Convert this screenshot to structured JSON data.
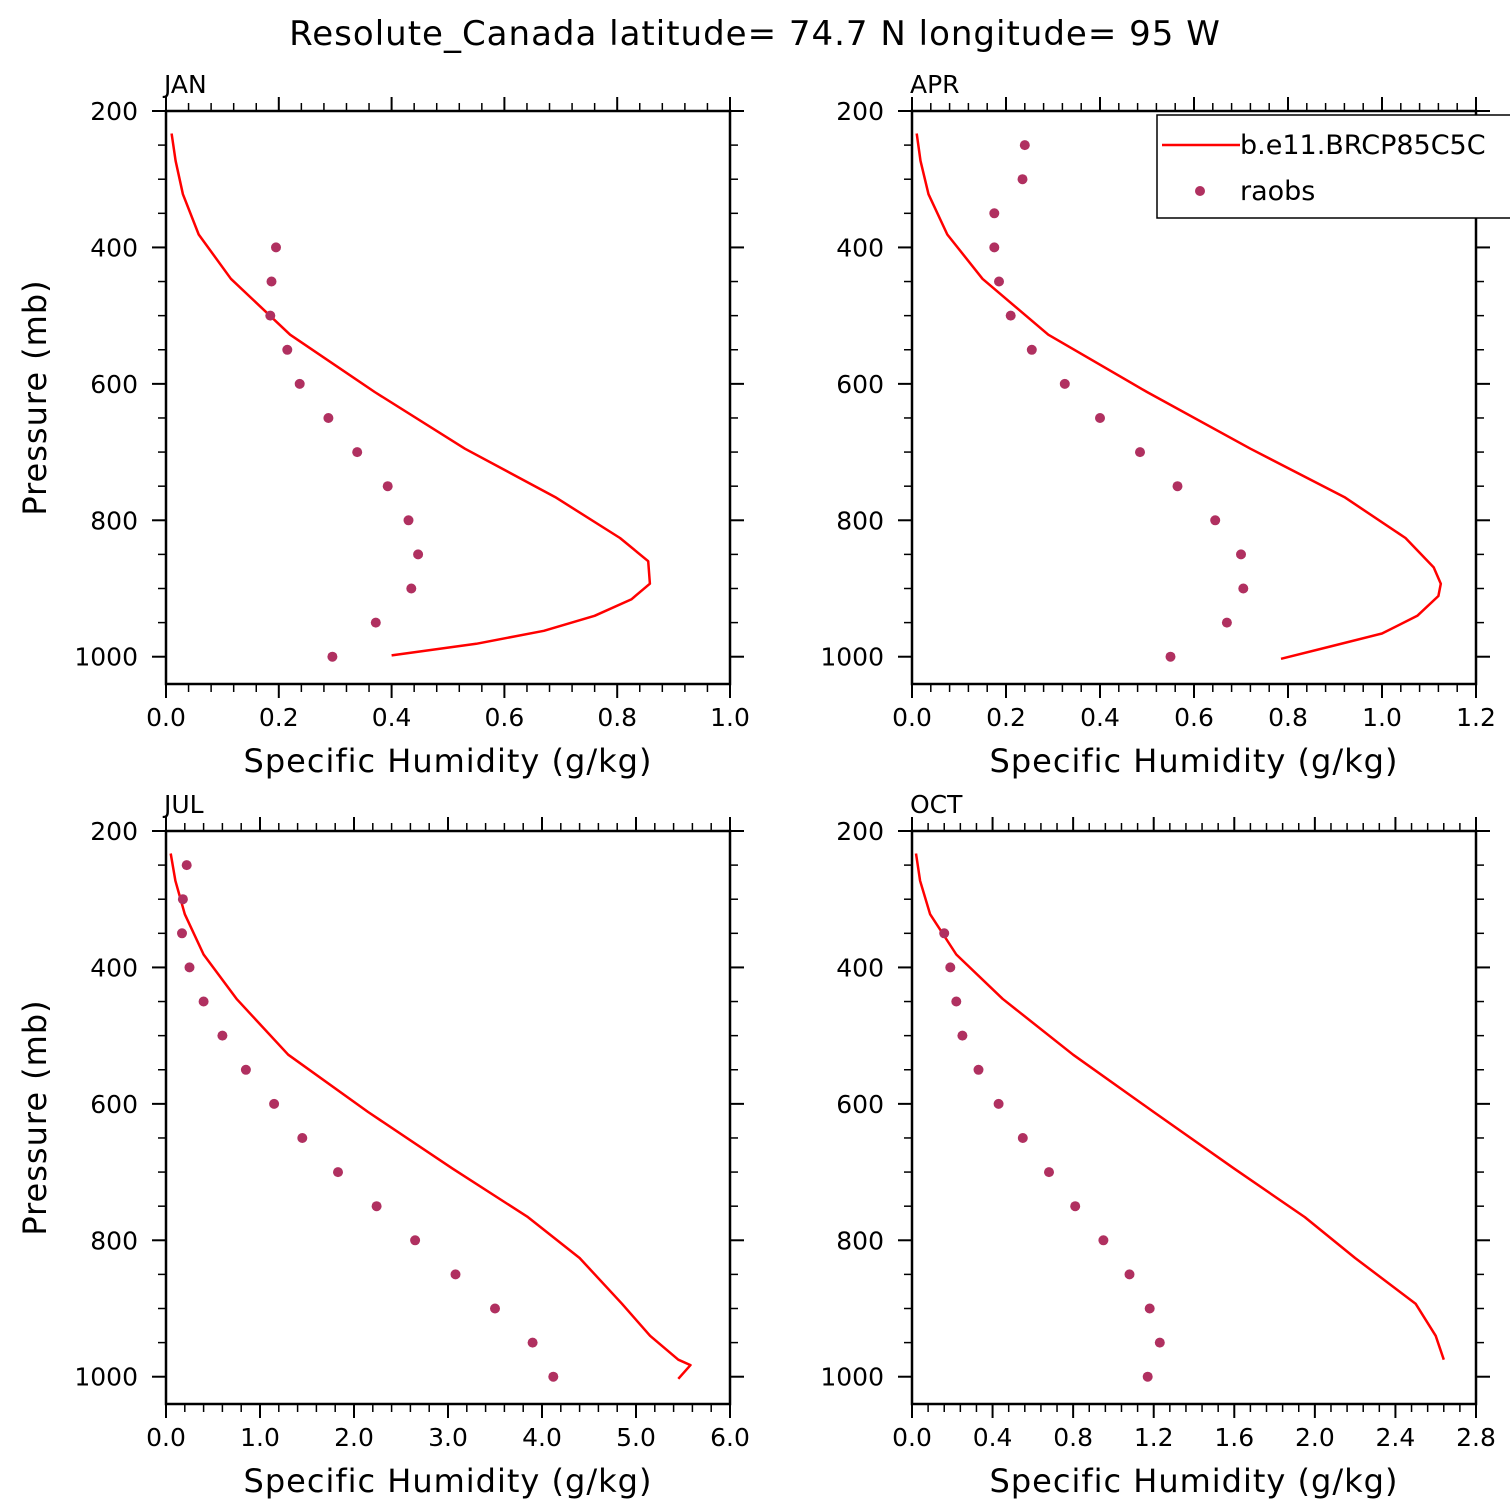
{
  "figure": {
    "title": "Resolute_Canada  latitude= 74.7 N longitude= 95 W"
  },
  "colors": {
    "model": "#ff0000",
    "obs": "#b03060",
    "axes": "#000000"
  },
  "legend": {
    "placement": "top-right of APR panel",
    "model_label": "b.e11.BRCP85C5C",
    "obs_label": "raobs"
  },
  "chart_data": [
    {
      "type": "line",
      "panel": "JAN",
      "xlabel": "Specific Humidity (g/kg)",
      "ylabel": "Pressure (mb)",
      "xlim": [
        0,
        1.0
      ],
      "xticks": [
        0.0,
        0.2,
        0.4,
        0.6,
        0.8,
        1.0
      ],
      "xtick_labels": [
        "0.0",
        "0.2",
        "0.4",
        "0.6",
        "0.8",
        "1.0"
      ],
      "ylim": [
        200,
        1040
      ],
      "yticks": [
        200,
        400,
        600,
        800,
        1000
      ],
      "ytick_labels": [
        "200",
        "400",
        "600",
        "800",
        "1000"
      ],
      "y_inverted": true,
      "series": [
        {
          "name": "b.e11.BRCP85C5C",
          "style": "line",
          "x": [
            0.01,
            0.017,
            0.03,
            0.058,
            0.115,
            0.22,
            0.37,
            0.53,
            0.69,
            0.805,
            0.855,
            0.858,
            0.825,
            0.76,
            0.67,
            0.55,
            0.4
          ],
          "y": [
            233,
            273,
            322,
            381,
            446,
            528,
            612,
            695,
            766,
            826,
            860,
            893,
            916,
            940,
            962,
            981,
            998
          ]
        },
        {
          "name": "raobs",
          "style": "markers",
          "x": [
            0.195,
            0.187,
            0.185,
            0.215,
            0.237,
            0.288,
            0.339,
            0.393,
            0.43,
            0.447,
            0.435,
            0.372,
            0.295
          ],
          "y": [
            400,
            450,
            500,
            550,
            600,
            650,
            700,
            750,
            800,
            850,
            900,
            950,
            1000
          ]
        }
      ]
    },
    {
      "type": "line",
      "panel": "APR",
      "xlabel": "Specific Humidity (g/kg)",
      "ylabel": "",
      "xlim": [
        0,
        1.2
      ],
      "xticks": [
        0.0,
        0.2,
        0.4,
        0.6,
        0.8,
        1.0,
        1.2
      ],
      "xtick_labels": [
        "0.0",
        "0.2",
        "0.4",
        "0.6",
        "0.8",
        "1.0",
        "1.2"
      ],
      "ylim": [
        200,
        1040
      ],
      "yticks": [
        200,
        400,
        600,
        800,
        1000
      ],
      "ytick_labels": [
        "200",
        "400",
        "600",
        "800",
        "1000"
      ],
      "y_inverted": true,
      "series": [
        {
          "name": "b.e11.BRCP85C5C",
          "style": "line",
          "x": [
            0.01,
            0.018,
            0.035,
            0.075,
            0.15,
            0.29,
            0.5,
            0.72,
            0.92,
            1.05,
            1.11,
            1.125,
            1.12,
            1.075,
            1.0,
            0.89,
            0.785
          ],
          "y": [
            233,
            273,
            322,
            381,
            446,
            528,
            612,
            695,
            766,
            826,
            869,
            893,
            911,
            940,
            966,
            985,
            1003
          ]
        },
        {
          "name": "raobs",
          "style": "markers",
          "x": [
            0.24,
            0.235,
            0.175,
            0.175,
            0.185,
            0.21,
            0.255,
            0.325,
            0.4,
            0.485,
            0.565,
            0.645,
            0.7,
            0.705,
            0.67,
            0.55
          ],
          "y": [
            250,
            300,
            350,
            400,
            450,
            500,
            550,
            600,
            650,
            700,
            750,
            800,
            850,
            900,
            950,
            1000
          ]
        }
      ]
    },
    {
      "type": "line",
      "panel": "JUL",
      "xlabel": "Specific Humidity (g/kg)",
      "ylabel": "Pressure (mb)",
      "xlim": [
        0,
        6.0
      ],
      "xticks": [
        0.0,
        1.0,
        2.0,
        3.0,
        4.0,
        5.0,
        6.0
      ],
      "xtick_labels": [
        "0.0",
        "1.0",
        "2.0",
        "3.0",
        "4.0",
        "5.0",
        "6.0"
      ],
      "ylim": [
        200,
        1040
      ],
      "yticks": [
        200,
        400,
        600,
        800,
        1000
      ],
      "ytick_labels": [
        "200",
        "400",
        "600",
        "800",
        "1000"
      ],
      "y_inverted": true,
      "series": [
        {
          "name": "b.e11.BRCP85C5C",
          "style": "line",
          "x": [
            0.05,
            0.1,
            0.2,
            0.4,
            0.75,
            1.3,
            2.15,
            3.05,
            3.85,
            4.4,
            4.85,
            5.15,
            5.45,
            5.58,
            5.45
          ],
          "y": [
            233,
            273,
            322,
            381,
            446,
            528,
            612,
            695,
            766,
            826,
            893,
            940,
            975,
            983,
            1003
          ]
        },
        {
          "name": "raobs",
          "style": "markers",
          "x": [
            0.22,
            0.18,
            0.17,
            0.25,
            0.4,
            0.6,
            0.85,
            1.15,
            1.45,
            1.83,
            2.24,
            2.65,
            3.08,
            3.5,
            3.9,
            4.12
          ],
          "y": [
            250,
            300,
            350,
            400,
            450,
            500,
            550,
            600,
            650,
            700,
            750,
            800,
            850,
            900,
            950,
            1000
          ]
        }
      ]
    },
    {
      "type": "line",
      "panel": "OCT",
      "xlabel": "Specific Humidity (g/kg)",
      "ylabel": "",
      "xlim": [
        0,
        2.8
      ],
      "xticks": [
        0.0,
        0.4,
        0.8,
        1.2,
        1.6,
        2.0,
        2.4,
        2.8
      ],
      "xtick_labels": [
        "0.0",
        "0.4",
        "0.8",
        "1.2",
        "1.6",
        "2.0",
        "2.4",
        "2.8"
      ],
      "ylim": [
        200,
        1040
      ],
      "yticks": [
        200,
        400,
        600,
        800,
        1000
      ],
      "ytick_labels": [
        "200",
        "400",
        "600",
        "800",
        "1000"
      ],
      "y_inverted": true,
      "series": [
        {
          "name": "b.e11.BRCP85C5C",
          "style": "line",
          "x": [
            0.02,
            0.04,
            0.09,
            0.22,
            0.45,
            0.8,
            1.2,
            1.6,
            1.95,
            2.2,
            2.5,
            2.6,
            2.64
          ],
          "y": [
            233,
            273,
            322,
            381,
            446,
            528,
            612,
            695,
            766,
            826,
            893,
            940,
            975
          ]
        },
        {
          "name": "raobs",
          "style": "markers",
          "x": [
            0.16,
            0.19,
            0.22,
            0.25,
            0.33,
            0.43,
            0.55,
            0.68,
            0.81,
            0.95,
            1.08,
            1.18,
            1.23,
            1.17
          ],
          "y": [
            350,
            400,
            450,
            500,
            550,
            600,
            650,
            700,
            750,
            800,
            850,
            900,
            950,
            1000
          ]
        }
      ]
    }
  ]
}
